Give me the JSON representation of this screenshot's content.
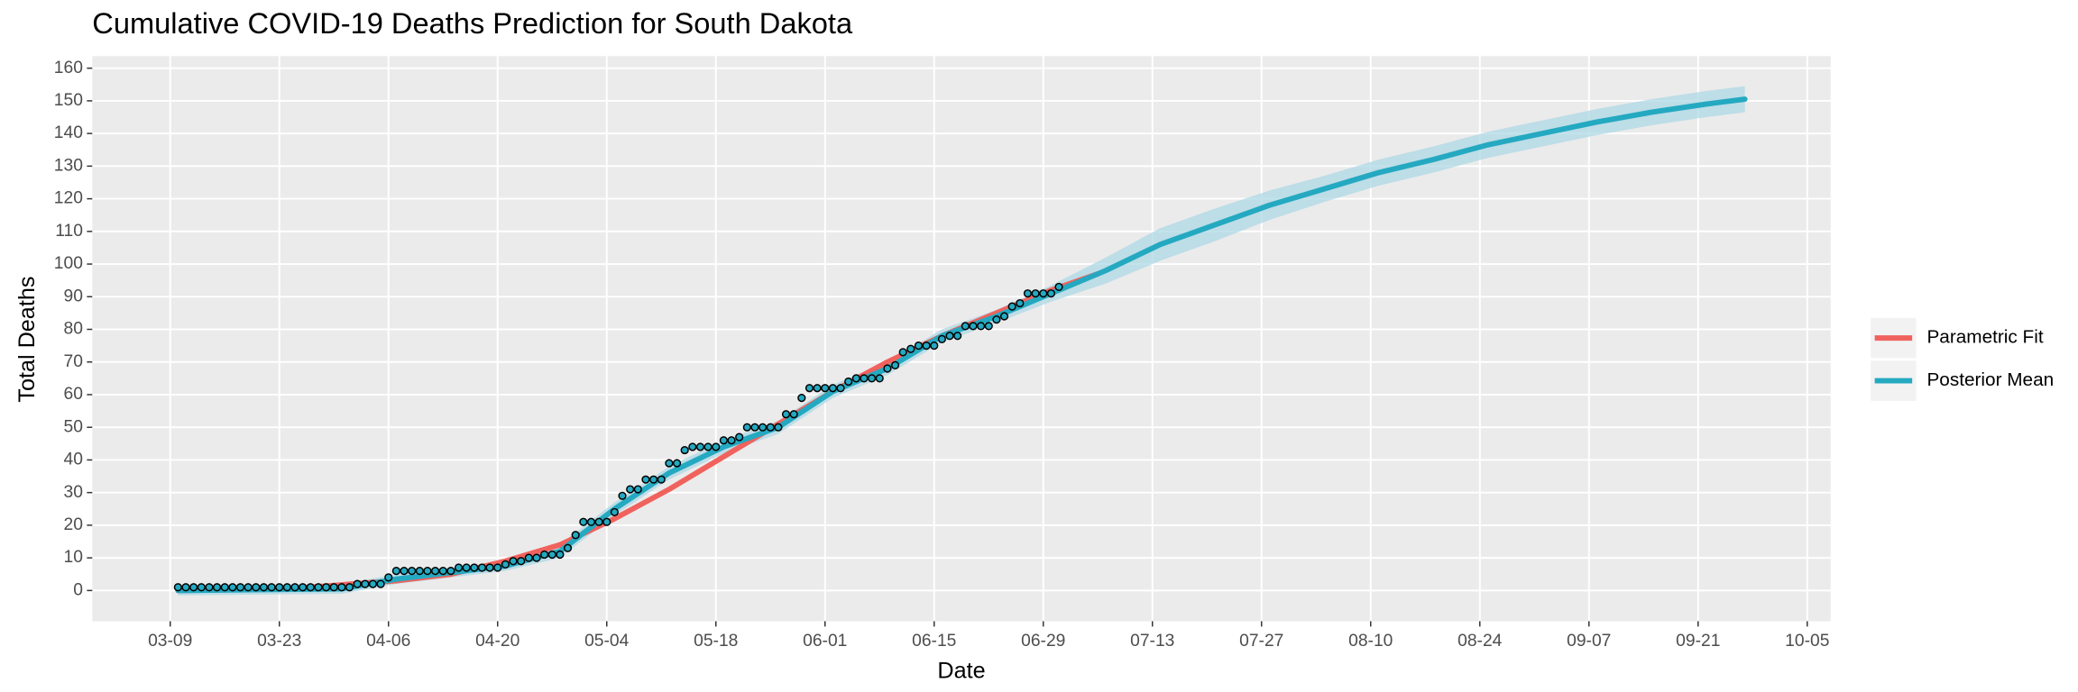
{
  "chart_data": {
    "type": "line",
    "title": "Cumulative COVID-19 Deaths Prediction for South Dakota",
    "x_label": "Date",
    "y_label": "Total Deaths",
    "xlim": [
      "02-28",
      "10-08"
    ],
    "xticks": [
      "03-09",
      "03-23",
      "04-06",
      "04-20",
      "05-04",
      "05-18",
      "06-01",
      "06-15",
      "06-29",
      "07-13",
      "07-27",
      "08-10",
      "08-24",
      "09-07",
      "09-21",
      "10-05"
    ],
    "ylim": [
      -9.4,
      163.7
    ],
    "yticks": [
      0,
      10,
      20,
      30,
      40,
      50,
      60,
      70,
      80,
      90,
      100,
      110,
      120,
      130,
      140,
      150,
      160
    ],
    "grid": true,
    "legend": "right",
    "series": [
      {
        "name": "Parametric Fit",
        "color": "#f0625d",
        "x": [
          "03-10",
          "03-24",
          "04-07",
          "04-14",
          "04-21",
          "04-28",
          "05-05",
          "05-12",
          "05-19",
          "05-26",
          "06-02",
          "06-09",
          "06-16",
          "06-23",
          "06-30",
          "07-06"
        ],
        "values": [
          0,
          0.5,
          3,
          5,
          9,
          14,
          22,
          31,
          41,
          51,
          61,
          70,
          78,
          85,
          92,
          97
        ]
      },
      {
        "name": "Posterior Mean",
        "color": "#24a9c1",
        "band_color": "#add8e6",
        "x": [
          "03-10",
          "03-31",
          "04-07",
          "04-14",
          "04-21",
          "04-28",
          "05-05",
          "05-12",
          "05-19",
          "05-26",
          "06-02",
          "06-09",
          "06-16",
          "06-23",
          "06-30",
          "07-07",
          "07-14",
          "07-21",
          "07-28",
          "08-04",
          "08-11",
          "08-18",
          "08-25",
          "09-01",
          "09-08",
          "09-15",
          "09-22",
          "09-27"
        ],
        "values": [
          0,
          0.5,
          3.5,
          5.5,
          7.5,
          12,
          25,
          36,
          44,
          50,
          61,
          68,
          78,
          84,
          91,
          98,
          106,
          112,
          118,
          123,
          128,
          132,
          136.5,
          140,
          143.5,
          146.5,
          149,
          150.5
        ],
        "lower": [
          -1.5,
          -1,
          2,
          4,
          6,
          10,
          23,
          34,
          42,
          48,
          59,
          66,
          76,
          82,
          88.5,
          94,
          101,
          107,
          113.5,
          119,
          124,
          128,
          132.5,
          136,
          139.5,
          142.5,
          145,
          146.5
        ],
        "upper": [
          1.5,
          2,
          5,
          7,
          9,
          14,
          27,
          38,
          46,
          52,
          63,
          70,
          80,
          86,
          93.5,
          102,
          111,
          117,
          122.5,
          127,
          132,
          136,
          140.5,
          144,
          147.5,
          150.5,
          153,
          154.5
        ]
      }
    ],
    "observed": {
      "color": "#24a9c1",
      "x": [
        "03-10",
        "03-11",
        "03-12",
        "03-13",
        "03-14",
        "03-15",
        "03-16",
        "03-17",
        "03-18",
        "03-19",
        "03-20",
        "03-21",
        "03-22",
        "03-23",
        "03-24",
        "03-25",
        "03-26",
        "03-27",
        "03-28",
        "03-29",
        "03-30",
        "03-31",
        "04-01",
        "04-02",
        "04-03",
        "04-04",
        "04-05",
        "04-06",
        "04-07",
        "04-08",
        "04-09",
        "04-10",
        "04-11",
        "04-12",
        "04-13",
        "04-14",
        "04-15",
        "04-16",
        "04-17",
        "04-18",
        "04-19",
        "04-20",
        "04-21",
        "04-22",
        "04-23",
        "04-24",
        "04-25",
        "04-26",
        "04-27",
        "04-28",
        "04-29",
        "04-30",
        "05-01",
        "05-02",
        "05-03",
        "05-04",
        "05-05",
        "05-06",
        "05-07",
        "05-08",
        "05-09",
        "05-10",
        "05-11",
        "05-12",
        "05-13",
        "05-14",
        "05-15",
        "05-16",
        "05-17",
        "05-18",
        "05-19",
        "05-20",
        "05-21",
        "05-22",
        "05-23",
        "05-24",
        "05-25",
        "05-26",
        "05-27",
        "05-28",
        "05-29",
        "05-30",
        "05-31",
        "06-01",
        "06-02",
        "06-03",
        "06-04",
        "06-05",
        "06-06",
        "06-07",
        "06-08",
        "06-09",
        "06-10",
        "06-11",
        "06-12",
        "06-13",
        "06-14",
        "06-15",
        "06-16",
        "06-17",
        "06-18",
        "06-19",
        "06-20",
        "06-21",
        "06-22",
        "06-23",
        "06-24",
        "06-25",
        "06-26",
        "06-27",
        "06-28",
        "06-29",
        "06-30",
        "07-01"
      ],
      "values": [
        1,
        1,
        1,
        1,
        1,
        1,
        1,
        1,
        1,
        1,
        1,
        1,
        1,
        1,
        1,
        1,
        1,
        1,
        1,
        1,
        1,
        1,
        1,
        2,
        2,
        2,
        2,
        4,
        6,
        6,
        6,
        6,
        6,
        6,
        6,
        6,
        7,
        7,
        7,
        7,
        7,
        7,
        8,
        9,
        9,
        10,
        10,
        11,
        11,
        11,
        13,
        17,
        21,
        21,
        21,
        21,
        24,
        29,
        31,
        31,
        34,
        34,
        34,
        39,
        39,
        43,
        44,
        44,
        44,
        44,
        46,
        46,
        47,
        50,
        50,
        50,
        50,
        50,
        54,
        54,
        59,
        62,
        62,
        62,
        62,
        62,
        64,
        65,
        65,
        65,
        65,
        68,
        69,
        73,
        74,
        75,
        75,
        75,
        77,
        78,
        78,
        81,
        81,
        81,
        81,
        83,
        84,
        87,
        88,
        91,
        91,
        91,
        91,
        93
      ]
    }
  }
}
